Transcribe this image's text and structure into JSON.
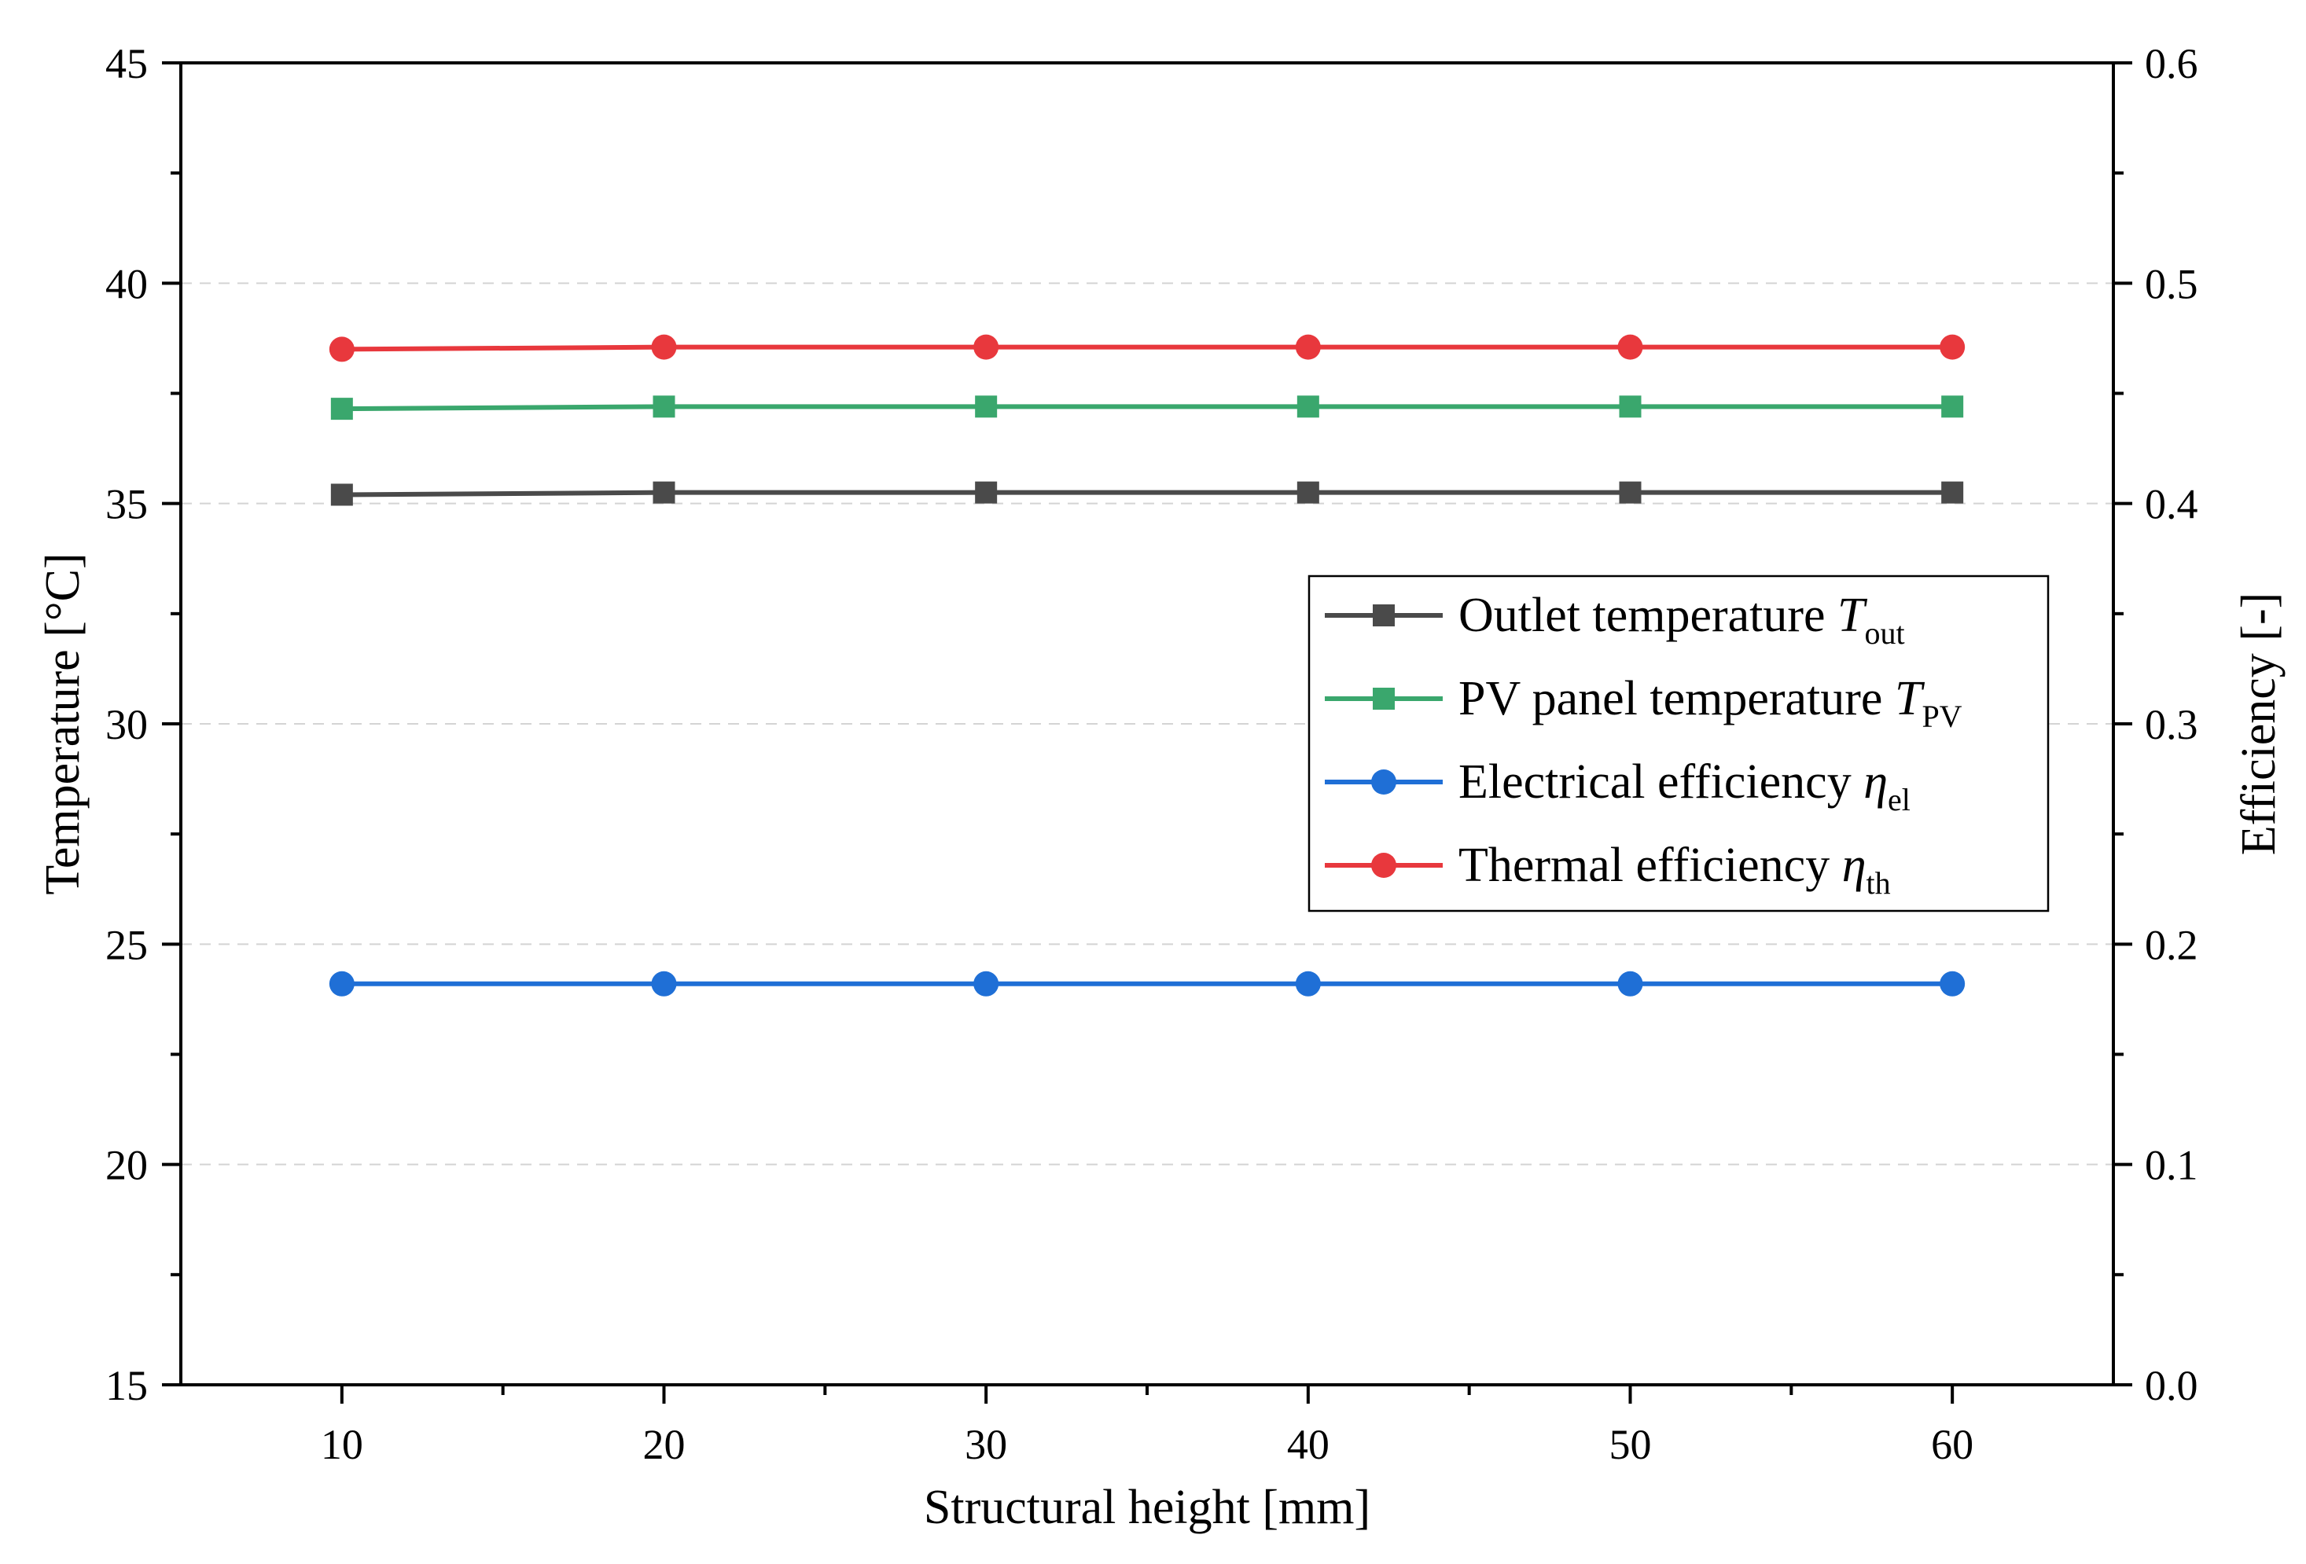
{
  "chart_data": {
    "type": "line",
    "xlabel": "Structural height [mm]",
    "ylabel_left": "Temperature [°C]",
    "ylabel_right": "Efficiency [-]",
    "x": [
      10,
      20,
      30,
      40,
      50,
      60
    ],
    "xlim": [
      5,
      65
    ],
    "xticks": [
      10,
      20,
      30,
      40,
      50,
      60
    ],
    "ylim_left": [
      15,
      45
    ],
    "yticks_left": [
      15,
      20,
      25,
      30,
      35,
      40,
      45
    ],
    "ylim_right": [
      0.0,
      0.6
    ],
    "yticks_right": [
      "0.0",
      "0.1",
      "0.2",
      "0.3",
      "0.4",
      "0.5",
      "0.6"
    ],
    "grid": "horizontal dashed",
    "legend_position": "center-right",
    "series": [
      {
        "name": "Outlet temperature",
        "symbol": "T",
        "subscript": "out",
        "axis": "left",
        "marker": "square",
        "color": "#4a4a4a",
        "values": [
          35.2,
          35.25,
          35.25,
          35.25,
          35.25,
          35.25
        ]
      },
      {
        "name": "PV panel temperature",
        "symbol": "T",
        "subscript": "PV",
        "axis": "left",
        "marker": "square",
        "color": "#3aa76d",
        "values": [
          37.15,
          37.2,
          37.2,
          37.2,
          37.2,
          37.2
        ]
      },
      {
        "name": "Electrical efficiency",
        "symbol": "η",
        "subscript": "el",
        "axis": "right",
        "marker": "circle",
        "color": "#1f6fd6",
        "values": [
          0.182,
          0.182,
          0.182,
          0.182,
          0.182,
          0.182
        ]
      },
      {
        "name": "Thermal efficiency",
        "symbol": "η",
        "subscript": "th",
        "axis": "right",
        "marker": "circle",
        "color": "#e8383d",
        "values": [
          0.47,
          0.471,
          0.471,
          0.471,
          0.471,
          0.471
        ]
      }
    ]
  }
}
